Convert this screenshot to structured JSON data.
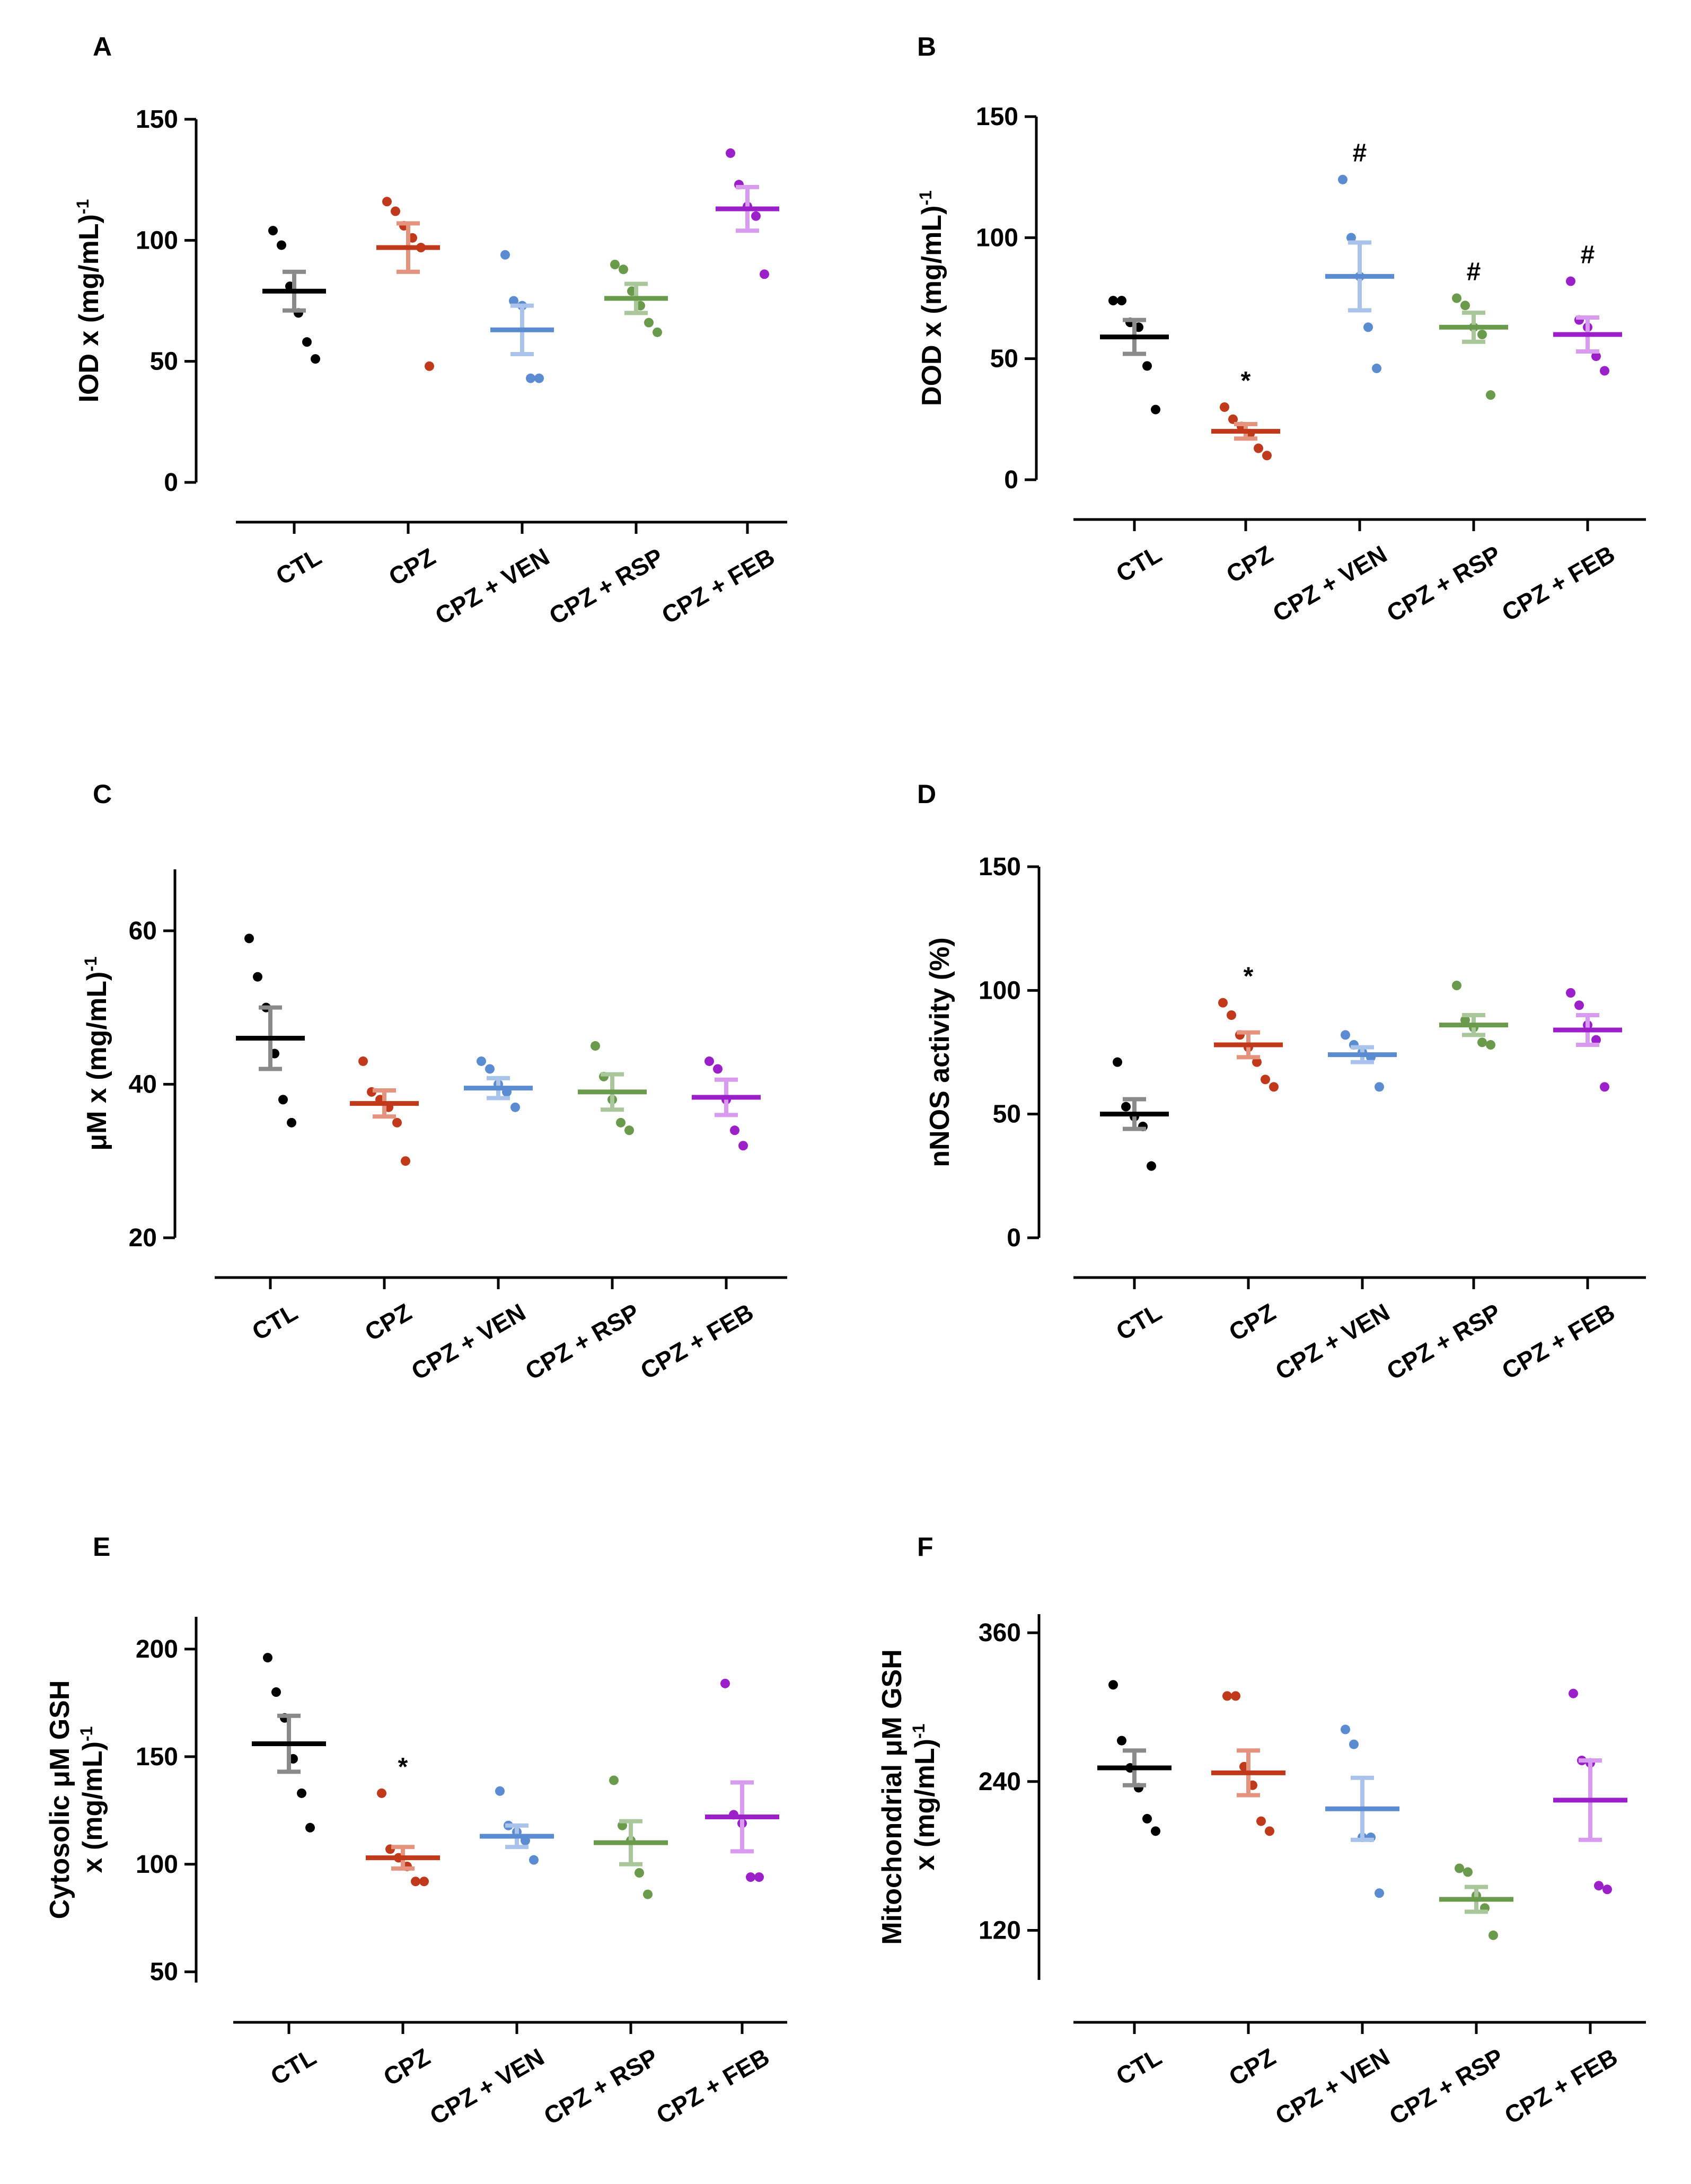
{
  "figure": {
    "categories": [
      "CTL",
      "CPZ",
      "CPZ + VEN",
      "CPZ + RSP",
      "CPZ + FEB"
    ],
    "group_colors": [
      "#000000",
      "#c0391b",
      "#5b8bd0",
      "#6a9a4c",
      "#9b20c9"
    ],
    "whisker_colors": [
      "#8a8a8a",
      "#e4947e",
      "#a9c3ea",
      "#a9c79a",
      "#d99bf0"
    ]
  },
  "chart_data": [
    {
      "panel": "A",
      "type": "scatter",
      "ylabel": "IOD x (mg/mL)",
      "ylabel_superscript": "-1",
      "ylim": [
        0,
        150
      ],
      "yticks": [
        "0",
        "50",
        "100",
        "150"
      ],
      "categories": [
        "CTL",
        "CPZ",
        "CPZ + VEN",
        "CPZ + RSP",
        "CPZ + FEB"
      ],
      "series": [
        {
          "name": "CTL",
          "mean": 79,
          "sem": 8,
          "points": [
            104,
            98,
            81,
            70,
            58,
            51
          ]
        },
        {
          "name": "CPZ",
          "mean": 97,
          "sem": 10,
          "points": [
            116,
            112,
            106,
            101,
            97,
            48
          ]
        },
        {
          "name": "CPZ + VEN",
          "mean": 63,
          "sem": 10,
          "points": [
            94,
            75,
            73,
            43,
            43
          ]
        },
        {
          "name": "CPZ + RSP",
          "mean": 76,
          "sem": 6,
          "points": [
            90,
            88,
            79,
            73,
            66,
            62
          ]
        },
        {
          "name": "CPZ + FEB",
          "mean": 113,
          "sem": 9,
          "points": [
            136,
            123,
            114,
            110,
            86
          ]
        }
      ],
      "annotations": [
        "",
        "",
        "",
        "",
        ""
      ]
    },
    {
      "panel": "B",
      "type": "scatter",
      "ylabel": "DOD x (mg/mL)",
      "ylabel_superscript": "-1",
      "ylim": [
        0,
        150
      ],
      "yticks": [
        "0",
        "50",
        "100",
        "150"
      ],
      "categories": [
        "CTL",
        "CPZ",
        "CPZ + VEN",
        "CPZ + RSP",
        "CPZ + FEB"
      ],
      "series": [
        {
          "name": "CTL",
          "mean": 59,
          "sem": 7,
          "points": [
            74,
            74,
            65,
            63,
            47,
            29
          ]
        },
        {
          "name": "CPZ",
          "mean": 20,
          "sem": 3,
          "points": [
            30,
            25,
            22,
            19,
            13,
            10
          ]
        },
        {
          "name": "CPZ + VEN",
          "mean": 84,
          "sem": 14,
          "points": [
            124,
            100,
            84,
            63,
            46
          ]
        },
        {
          "name": "CPZ + RSP",
          "mean": 63,
          "sem": 6,
          "points": [
            75,
            72,
            63,
            60,
            35
          ]
        },
        {
          "name": "CPZ + FEB",
          "mean": 60,
          "sem": 7,
          "points": [
            82,
            66,
            63,
            51,
            45
          ]
        }
      ],
      "annotations": [
        "",
        "*",
        "#",
        "#",
        "#"
      ]
    },
    {
      "panel": "C",
      "type": "scatter",
      "ylabel": "μM x (mg/mL)",
      "ylabel_superscript": "-1",
      "ylim": [
        20,
        68
      ],
      "yticks": [
        "20",
        "40",
        "60"
      ],
      "categories": [
        "CTL",
        "CPZ",
        "CPZ + VEN",
        "CPZ + RSP",
        "CPZ + FEB"
      ],
      "series": [
        {
          "name": "CTL",
          "mean": 46,
          "sem": 4,
          "points": [
            59,
            54,
            50,
            44,
            38,
            35
          ]
        },
        {
          "name": "CPZ",
          "mean": 37.5,
          "sem": 1.7,
          "points": [
            43,
            39,
            38,
            37,
            35,
            30
          ]
        },
        {
          "name": "CPZ + VEN",
          "mean": 39.5,
          "sem": 1.3,
          "points": [
            43,
            42,
            40,
            39,
            37
          ]
        },
        {
          "name": "CPZ + RSP",
          "mean": 39,
          "sem": 2.3,
          "points": [
            45,
            41,
            38,
            35,
            34
          ]
        },
        {
          "name": "CPZ + FEB",
          "mean": 38.3,
          "sem": 2.3,
          "points": [
            43,
            42,
            38,
            34,
            32
          ]
        }
      ],
      "annotations": [
        "",
        "",
        "",
        "",
        ""
      ]
    },
    {
      "panel": "D",
      "type": "scatter",
      "ylabel": "nNOS activity (%)",
      "ylabel_superscript": "",
      "ylim": [
        0,
        150
      ],
      "yticks": [
        "0",
        "50",
        "100",
        "150"
      ],
      "categories": [
        "CTL",
        "CPZ",
        "CPZ + VEN",
        "CPZ + RSP",
        "CPZ + FEB"
      ],
      "series": [
        {
          "name": "CTL",
          "mean": 50,
          "sem": 6,
          "points": [
            71,
            53,
            49,
            45,
            29
          ]
        },
        {
          "name": "CPZ",
          "mean": 78,
          "sem": 5,
          "points": [
            95,
            90,
            82,
            77,
            71,
            64,
            61
          ]
        },
        {
          "name": "CPZ + VEN",
          "mean": 74,
          "sem": 3,
          "points": [
            82,
            78,
            75,
            73,
            61
          ]
        },
        {
          "name": "CPZ + RSP",
          "mean": 86,
          "sem": 4,
          "points": [
            102,
            88,
            85,
            79,
            78
          ]
        },
        {
          "name": "CPZ + FEB",
          "mean": 84,
          "sem": 6,
          "points": [
            99,
            94,
            86,
            80,
            61
          ]
        }
      ],
      "annotations": [
        "",
        "*",
        "",
        "",
        ""
      ]
    },
    {
      "panel": "E",
      "type": "scatter",
      "ylabel": "Cytosolic μM GSH",
      "ylabel_line2": "x (mg/mL)",
      "ylabel_superscript": "-1",
      "ylim": [
        45,
        215
      ],
      "yticks": [
        "50",
        "100",
        "150",
        "200"
      ],
      "categories": [
        "CTL",
        "CPZ",
        "CPZ + VEN",
        "CPZ + RSP",
        "CPZ + FEB"
      ],
      "series": [
        {
          "name": "CTL",
          "mean": 156,
          "sem": 13,
          "points": [
            196,
            180,
            168,
            149,
            133,
            117
          ]
        },
        {
          "name": "CPZ",
          "mean": 103,
          "sem": 5,
          "points": [
            133,
            107,
            103,
            99,
            92,
            92
          ]
        },
        {
          "name": "CPZ + VEN",
          "mean": 113,
          "sem": 5,
          "points": [
            134,
            118,
            115,
            111,
            102
          ]
        },
        {
          "name": "CPZ + RSP",
          "mean": 110,
          "sem": 10,
          "points": [
            139,
            118,
            111,
            96,
            86
          ]
        },
        {
          "name": "CPZ + FEB",
          "mean": 122,
          "sem": 16,
          "points": [
            184,
            123,
            119,
            94,
            94
          ]
        }
      ],
      "annotations": [
        "",
        "*",
        "",
        "",
        ""
      ]
    },
    {
      "panel": "F",
      "type": "scatter",
      "ylabel": "Mitochondrial μM GSH",
      "ylabel_line2": "x (mg/mL)",
      "ylabel_superscript": "-1",
      "ylim": [
        80,
        375
      ],
      "yticks": [
        "120",
        "240",
        "360"
      ],
      "categories": [
        "CTL",
        "CPZ",
        "CPZ + VEN",
        "CPZ + RSP",
        "CPZ + FEB"
      ],
      "series": [
        {
          "name": "CTL",
          "mean": 251,
          "sem": 14,
          "points": [
            318,
            273,
            251,
            235,
            210,
            200
          ]
        },
        {
          "name": "CPZ",
          "mean": 247,
          "sem": 18,
          "points": [
            309,
            309,
            252,
            237,
            208,
            200
          ]
        },
        {
          "name": "CPZ + VEN",
          "mean": 218,
          "sem": 25,
          "points": [
            282,
            270,
            195,
            195,
            150
          ]
        },
        {
          "name": "CPZ + RSP",
          "mean": 145,
          "sem": 10,
          "points": [
            170,
            167,
            148,
            138,
            116
          ]
        },
        {
          "name": "CPZ + FEB",
          "mean": 225,
          "sem": 32,
          "points": [
            311,
            257,
            255,
            156,
            153
          ]
        }
      ],
      "annotations": [
        "",
        "",
        "",
        "",
        ""
      ]
    }
  ]
}
